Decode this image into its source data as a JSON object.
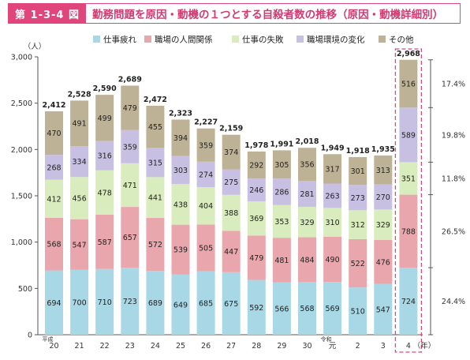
{
  "header": {
    "fig_label": "第 1-3-4 図",
    "title": "勤務問題を原因・動機の１つとする自殺者数の推移（原因・動機詳細別）"
  },
  "chart_data": {
    "type": "bar",
    "stacked": true,
    "categories": [
      "20",
      "21",
      "22",
      "23",
      "24",
      "25",
      "26",
      "27",
      "28",
      "29",
      "30",
      "元",
      "2",
      "3",
      "4"
    ],
    "era_marks": [
      {
        "at_index": 0,
        "text": "平成"
      },
      {
        "at_index": 11,
        "text": "令和"
      }
    ],
    "y_unit_label": "（人）",
    "x_unit_label": "（年）",
    "ylim": [
      0,
      3000
    ],
    "yticks": [
      "0",
      "500",
      "1,000",
      "1,500",
      "2,000",
      "2,500",
      "3,000"
    ],
    "ytick_values": [
      0,
      500,
      1000,
      1500,
      2000,
      2500,
      3000
    ],
    "series": [
      {
        "name": "仕事疲れ",
        "color": "#a8d8e6",
        "values": [
          694,
          700,
          710,
          723,
          689,
          649,
          685,
          675,
          592,
          566,
          568,
          569,
          510,
          547,
          724
        ],
        "labels": [
          "694",
          "700",
          "710",
          "723",
          "689",
          "649",
          "685",
          "675",
          "592",
          "566",
          "568",
          "569",
          "510",
          "547",
          "724"
        ]
      },
      {
        "name": "職場の人間関係",
        "color": "#e9a7ad",
        "values": [
          568,
          547,
          587,
          657,
          572,
          539,
          505,
          447,
          479,
          481,
          484,
          490,
          522,
          476,
          788
        ],
        "labels": [
          "568",
          "547",
          "587",
          "657",
          "572",
          "539",
          "505",
          "447",
          "479",
          "481",
          "484",
          "490",
          "522",
          "476",
          "788"
        ]
      },
      {
        "name": "仕事の失敗",
        "color": "#d9ecbd",
        "values": [
          412,
          456,
          478,
          471,
          441,
          438,
          404,
          388,
          369,
          353,
          329,
          310,
          312,
          329,
          351
        ],
        "labels": [
          "412",
          "456",
          "478",
          "471",
          "441",
          "438",
          "404",
          "388",
          "369",
          "353",
          "329",
          "310",
          "312",
          "329",
          "351"
        ]
      },
      {
        "name": "職場環境の変化",
        "color": "#c8c0e2",
        "values": [
          268,
          334,
          316,
          359,
          315,
          303,
          274,
          275,
          246,
          286,
          281,
          263,
          273,
          270,
          589
        ],
        "labels": [
          "268",
          "334",
          "316",
          "359",
          "315",
          "303",
          "274",
          "275",
          "246",
          "286",
          "281",
          "263",
          "273",
          "270",
          "589"
        ]
      },
      {
        "name": "その他",
        "color": "#beb296",
        "values": [
          470,
          491,
          499,
          479,
          455,
          394,
          359,
          374,
          292,
          305,
          356,
          317,
          301,
          313,
          516
        ],
        "labels": [
          "470",
          "491",
          "499",
          "479",
          "455",
          "394",
          "359",
          "374",
          "292",
          "305",
          "356",
          "317",
          "301",
          "313",
          "516"
        ]
      }
    ],
    "totals": [
      "2,412",
      "2,528",
      "2,590",
      "2,689",
      "2,472",
      "2,323",
      "2,227",
      "2,159",
      "1,978",
      "1,991",
      "2,018",
      "1,949",
      "1,918",
      "1,935",
      "2,968"
    ],
    "highlight_index": 14,
    "percent_labels": [
      "24.4%",
      "26.5%",
      "11.8%",
      "19.8%",
      "17.4%"
    ],
    "grid": false,
    "legend_position": "top"
  }
}
